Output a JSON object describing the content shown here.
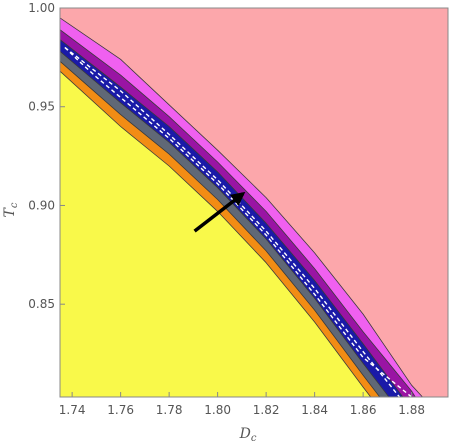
{
  "chart_data": {
    "type": "area",
    "title": "",
    "xlabel": "D",
    "xlabel_sub": "c",
    "ylabel": "T",
    "ylabel_sub": "c",
    "xlim": [
      1.735,
      1.895
    ],
    "ylim": [
      0.803,
      1.0
    ],
    "x_ticks": [
      1.74,
      1.76,
      1.78,
      1.8,
      1.82,
      1.84,
      1.86,
      1.88
    ],
    "x_tick_labels": [
      "1.74",
      "1.76",
      "1.78",
      "1.80",
      "1.82",
      "1.84",
      "1.86",
      "1.88"
    ],
    "y_ticks": [
      0.85,
      0.9,
      0.95,
      1.0
    ],
    "y_tick_labels": [
      "0.85",
      "0.90",
      "0.95",
      "1.00"
    ],
    "grid": false,
    "background_region": {
      "name": "upper region",
      "color": "#fca7ab"
    },
    "regions": [
      {
        "name": "magenta band",
        "color": "#f060f0",
        "boundary": [
          [
            1.735,
            0.995
          ],
          [
            1.76,
            0.974
          ],
          [
            1.78,
            0.951
          ],
          [
            1.8,
            0.928
          ],
          [
            1.82,
            0.904
          ],
          [
            1.84,
            0.876
          ],
          [
            1.86,
            0.845
          ],
          [
            1.88,
            0.809
          ],
          [
            1.8845,
            0.803
          ]
        ]
      },
      {
        "name": "purple band",
        "color": "#9a14a4",
        "boundary": [
          [
            1.735,
            0.989
          ],
          [
            1.76,
            0.966
          ],
          [
            1.78,
            0.945
          ],
          [
            1.8,
            0.922
          ],
          [
            1.82,
            0.897
          ],
          [
            1.84,
            0.868
          ],
          [
            1.86,
            0.836
          ],
          [
            1.88,
            0.806
          ],
          [
            1.8815,
            0.803
          ]
        ]
      },
      {
        "name": "blue band",
        "color": "#1a1aa8",
        "boundary": [
          [
            1.735,
            0.984
          ],
          [
            1.76,
            0.96
          ],
          [
            1.78,
            0.94
          ],
          [
            1.8,
            0.917
          ],
          [
            1.82,
            0.891
          ],
          [
            1.84,
            0.862
          ],
          [
            1.86,
            0.83
          ],
          [
            1.88,
            0.797
          ]
        ]
      },
      {
        "name": "gray band",
        "color": "#606876",
        "boundary": [
          [
            1.735,
            0.978
          ],
          [
            1.76,
            0.952
          ],
          [
            1.78,
            0.932
          ],
          [
            1.8,
            0.909
          ],
          [
            1.82,
            0.883
          ],
          [
            1.84,
            0.853
          ],
          [
            1.86,
            0.82
          ],
          [
            1.88,
            0.788
          ]
        ]
      },
      {
        "name": "orange band",
        "color": "#f28c14",
        "boundary": [
          [
            1.735,
            0.973
          ],
          [
            1.76,
            0.946
          ],
          [
            1.78,
            0.926
          ],
          [
            1.8,
            0.903
          ],
          [
            1.82,
            0.877
          ],
          [
            1.84,
            0.847
          ],
          [
            1.86,
            0.814
          ],
          [
            1.88,
            0.782
          ]
        ]
      },
      {
        "name": "yellow region",
        "color": "#f9f94a",
        "boundary": [
          [
            1.735,
            0.968
          ],
          [
            1.76,
            0.94
          ],
          [
            1.78,
            0.92
          ],
          [
            1.8,
            0.897
          ],
          [
            1.82,
            0.871
          ],
          [
            1.84,
            0.841
          ],
          [
            1.86,
            0.808
          ],
          [
            1.88,
            0.776
          ]
        ]
      }
    ],
    "dashed_curves": [
      {
        "color": "#ffffff",
        "points": [
          [
            1.737,
            0.98
          ],
          [
            1.76,
            0.958
          ],
          [
            1.78,
            0.936
          ],
          [
            1.8,
            0.913
          ],
          [
            1.82,
            0.887
          ],
          [
            1.84,
            0.858
          ],
          [
            1.86,
            0.826
          ],
          [
            1.875,
            0.803
          ]
        ]
      },
      {
        "color": "#ffffff",
        "points": [
          [
            1.737,
            0.98
          ],
          [
            1.742,
            0.974
          ],
          [
            1.75,
            0.965
          ],
          [
            1.78,
            0.934
          ],
          [
            1.8,
            0.911
          ],
          [
            1.82,
            0.885
          ],
          [
            1.84,
            0.855
          ],
          [
            1.86,
            0.823
          ],
          [
            1.88,
            0.803
          ]
        ]
      }
    ],
    "annotations": [
      {
        "type": "arrow",
        "color": "#000000",
        "from": [
          1.7905,
          0.887
        ],
        "to": [
          1.8105,
          0.906
        ]
      }
    ]
  }
}
